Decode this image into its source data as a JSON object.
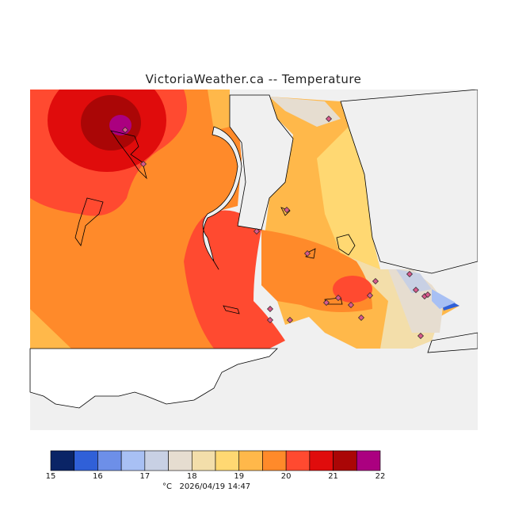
{
  "title": "VictoriaWeather.ca -- Temperature",
  "legend": {
    "unit": "°C",
    "timestamp": "2026/04/19 14:47",
    "ticks": [
      "15",
      "16",
      "17",
      "18",
      "19",
      "20",
      "21",
      "22"
    ],
    "colors": [
      "#0a2466",
      "#3060d8",
      "#6d8fe8",
      "#a8c0f4",
      "#c8d0e4",
      "#e6ddd0",
      "#f3deaa",
      "#ffd872",
      "#ffb84a",
      "#ff8a2a",
      "#ff4a30",
      "#e00c0c",
      "#aa0606",
      "#ab0080"
    ]
  },
  "map": {
    "no_data_color": "#f0f0f0",
    "station_count": 20
  }
}
